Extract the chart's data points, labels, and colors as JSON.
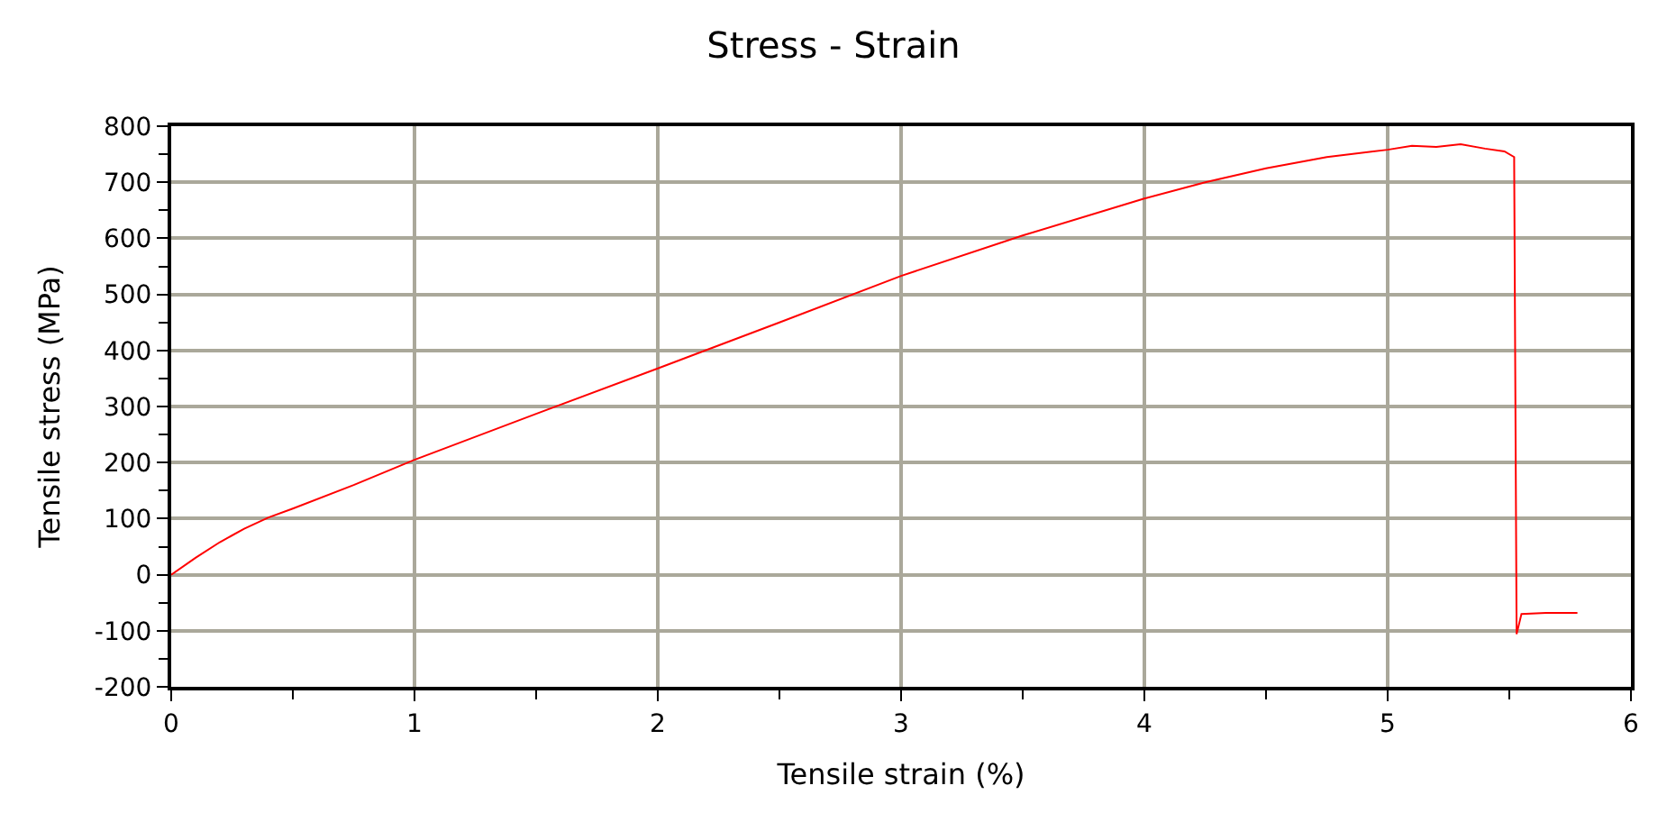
{
  "chart_data": {
    "type": "line",
    "title": "Stress - Strain",
    "xlabel": "Tensile strain (%)",
    "ylabel": "Tensile stress (MPa)",
    "series": [
      {
        "color": "#ff0000",
        "x": [
          0,
          0.1,
          0.2,
          0.3,
          0.4,
          0.5,
          0.75,
          1,
          1.5,
          2,
          2.5,
          3,
          3.5,
          4,
          4.25,
          4.5,
          4.75,
          5,
          5.1,
          5.2,
          5.3,
          5.4,
          5.48,
          5.52,
          5.52,
          5.53,
          5.55,
          5.65,
          5.78
        ],
        "values": [
          0,
          30,
          58,
          82,
          102,
          118,
          160,
          205,
          287,
          368,
          450,
          533,
          605,
          671,
          700,
          725,
          745,
          758,
          765,
          763,
          768,
          760,
          755,
          745,
          735,
          -106,
          -70,
          -68,
          -68
        ]
      }
    ],
    "xlim": [
      0,
      6
    ],
    "xticks": [
      0,
      1,
      2,
      3,
      4,
      5,
      6
    ],
    "ylim": [
      -200,
      800
    ],
    "yticks": [
      -200,
      -100,
      0,
      100,
      200,
      300,
      400,
      500,
      600,
      700,
      800
    ],
    "grid": true,
    "marker": "none",
    "line_style": "solid"
  }
}
